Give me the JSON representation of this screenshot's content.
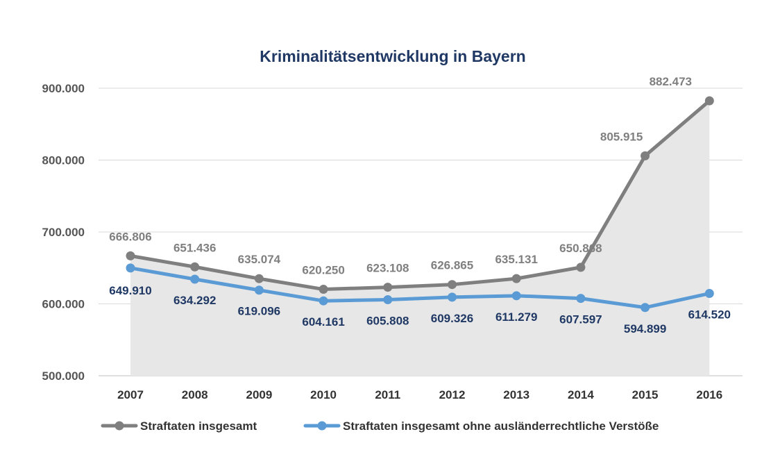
{
  "chart_data": {
    "type": "line",
    "title": "Kriminalitätsentwicklung in Bayern",
    "xlabel": "",
    "ylabel": "",
    "categories": [
      "2007",
      "2008",
      "2009",
      "2010",
      "2011",
      "2012",
      "2013",
      "2014",
      "2015",
      "2016"
    ],
    "ylim": [
      500000,
      900000
    ],
    "yticks": [
      500000,
      600000,
      700000,
      800000,
      900000
    ],
    "ytick_labels": [
      "500.000",
      "600.000",
      "700.000",
      "800.000",
      "900.000"
    ],
    "grid": true,
    "legend_position": "bottom",
    "series": [
      {
        "name": "Straftaten insgesamt",
        "color": "#7f7f7f",
        "area_fill": "#e7e7e7",
        "values": [
          666806,
          651436,
          635074,
          620250,
          623108,
          626865,
          635131,
          650868,
          805915,
          882473
        ],
        "labels": [
          "666.806",
          "651.436",
          "635.074",
          "620.250",
          "623.108",
          "626.865",
          "635.131",
          "650.868",
          "805.915",
          "882.473"
        ]
      },
      {
        "name": "Straftaten insgesamt ohne ausländerrechtliche Verstöße",
        "color": "#5b9bd5",
        "values": [
          649910,
          634292,
          619096,
          604161,
          605808,
          609326,
          611279,
          607597,
          594899,
          614520
        ],
        "labels": [
          "649.910",
          "634.292",
          "619.096",
          "604.161",
          "605.808",
          "609.326",
          "611.279",
          "607.597",
          "594.899",
          "614.520"
        ]
      }
    ]
  }
}
